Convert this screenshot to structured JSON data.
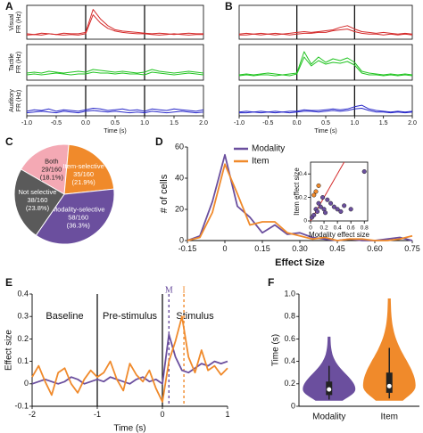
{
  "chart_data": [
    {
      "type": "multi-line",
      "label": "A",
      "xlabel": "Time (s)",
      "xlim": [
        -1,
        2
      ],
      "xticks": [
        {
          "value": -1,
          "label": "-1.0"
        },
        {
          "value": -0.5,
          "label": "-0.5"
        },
        {
          "value": 0,
          "label": "0.0"
        },
        {
          "value": 0.5,
          "label": "0.5"
        },
        {
          "value": 1,
          "label": "1.0"
        },
        {
          "value": 1.5,
          "label": "1.5"
        },
        {
          "value": 2,
          "label": "2.0"
        }
      ],
      "vlines": [
        0,
        1
      ],
      "x": [
        -1,
        -0.875,
        -0.75,
        -0.625,
        -0.5,
        -0.375,
        -0.25,
        -0.125,
        0,
        0.125,
        0.25,
        0.375,
        0.5,
        0.625,
        0.75,
        0.875,
        1,
        1.125,
        1.25,
        1.375,
        1.5,
        1.625,
        1.75,
        1.875,
        2
      ],
      "rows": [
        {
          "ylabel": [
            "Visual",
            "FR (Hz)"
          ],
          "ylim": [
            0,
            50
          ],
          "series": [
            {
              "color": "#d42a2a",
              "values": [
                8,
                7,
                9,
                8,
                7,
                9,
                8,
                8,
                10,
                44,
                30,
                20,
                14,
                12,
                11,
                10,
                9,
                8,
                9,
                8,
                7,
                8,
                9,
                8,
                8
              ]
            },
            {
              "color": "#d42a2a",
              "values": [
                6,
                7,
                6,
                8,
                7,
                6,
                7,
                6,
                8,
                36,
                24,
                16,
                12,
                10,
                9,
                8,
                8,
                7,
                6,
                7,
                8,
                7,
                6,
                7,
                7
              ]
            }
          ]
        },
        {
          "ylabel": [
            "Tactile",
            "FR (Hz)"
          ],
          "ylim": [
            0,
            40
          ],
          "series": [
            {
              "color": "#22c422",
              "values": [
                8,
                9,
                8,
                10,
                9,
                8,
                9,
                10,
                9,
                12,
                11,
                10,
                9,
                10,
                9,
                8,
                9,
                12,
                10,
                9,
                8,
                9,
                10,
                9,
                8
              ]
            },
            {
              "color": "#22c422",
              "values": [
                6,
                7,
                6,
                7,
                8,
                7,
                6,
                7,
                7,
                9,
                8,
                8,
                7,
                8,
                7,
                7,
                6,
                9,
                8,
                7,
                6,
                7,
                8,
                7,
                6
              ]
            }
          ]
        },
        {
          "ylabel": [
            "Auditory",
            "FR (Hz)"
          ],
          "ylim": [
            0,
            40
          ],
          "series": [
            {
              "color": "#2828c8",
              "values": [
                6,
                8,
                7,
                9,
                6,
                8,
                7,
                6,
                8,
                10,
                9,
                7,
                8,
                9,
                7,
                8,
                6,
                9,
                8,
                7,
                9,
                8,
                7,
                6,
                8
              ]
            },
            {
              "color": "#2828c8",
              "values": [
                4,
                5,
                6,
                5,
                4,
                6,
                5,
                4,
                6,
                7,
                6,
                5,
                6,
                5,
                4,
                5,
                4,
                6,
                5,
                4,
                5,
                6,
                5,
                4,
                5
              ]
            }
          ]
        }
      ]
    },
    {
      "type": "multi-line",
      "label": "B",
      "xlabel": "Time (s)",
      "xlim": [
        -1,
        2
      ],
      "xticks": [
        {
          "value": -1,
          "label": "-1.0"
        },
        {
          "value": -0.5,
          "label": "-0.5"
        },
        {
          "value": 0,
          "label": "0.0"
        },
        {
          "value": 0.5,
          "label": "0.5"
        },
        {
          "value": 1,
          "label": "1.0"
        },
        {
          "value": 1.5,
          "label": "1.5"
        },
        {
          "value": 2,
          "label": "2.0"
        }
      ],
      "vlines": [
        0,
        1
      ],
      "x": [
        -1,
        -0.875,
        -0.75,
        -0.625,
        -0.5,
        -0.375,
        -0.25,
        -0.125,
        0,
        0.125,
        0.25,
        0.375,
        0.5,
        0.625,
        0.75,
        0.875,
        1,
        1.125,
        1.25,
        1.375,
        1.5,
        1.625,
        1.75,
        1.875,
        2
      ],
      "rows": [
        {
          "ylabel": [],
          "ylim": [
            0,
            40
          ],
          "series": [
            {
              "color": "#d42a2a",
              "values": [
                6,
                7,
                6,
                7,
                6,
                7,
                6,
                7,
                8,
                9,
                8,
                9,
                10,
                11,
                14,
                16,
                12,
                9,
                8,
                7,
                8,
                7,
                6,
                7,
                6
              ]
            },
            {
              "color": "#d42a2a",
              "values": [
                5,
                5,
                6,
                5,
                6,
                5,
                6,
                5,
                6,
                7,
                7,
                8,
                8,
                10,
                11,
                12,
                9,
                7,
                6,
                6,
                5,
                6,
                5,
                6,
                5
              ]
            }
          ]
        },
        {
          "ylabel": [],
          "ylim": [
            0,
            40
          ],
          "series": [
            {
              "color": "#22c422",
              "values": [
                6,
                7,
                6,
                7,
                8,
                7,
                6,
                7,
                8,
                32,
                18,
                26,
                20,
                24,
                22,
                25,
                20,
                10,
                8,
                7,
                6,
                7,
                6,
                7,
                6
              ]
            },
            {
              "color": "#22c422",
              "values": [
                5,
                6,
                5,
                6,
                6,
                5,
                6,
                5,
                7,
                26,
                16,
                22,
                18,
                20,
                19,
                21,
                17,
                8,
                6,
                6,
                5,
                6,
                5,
                6,
                5
              ]
            }
          ]
        },
        {
          "ylabel": [],
          "ylim": [
            0,
            40
          ],
          "series": [
            {
              "color": "#2828c8",
              "values": [
                5,
                6,
                5,
                6,
                5,
                6,
                5,
                6,
                6,
                8,
                7,
                7,
                8,
                9,
                8,
                9,
                12,
                14,
                9,
                7,
                6,
                5,
                6,
                5,
                6
              ]
            },
            {
              "color": "#2828c8",
              "values": [
                4,
                4,
                5,
                4,
                5,
                4,
                5,
                4,
                5,
                6,
                6,
                5,
                6,
                7,
                6,
                7,
                9,
                10,
                7,
                5,
                5,
                4,
                5,
                4,
                5
              ]
            }
          ]
        }
      ]
    },
    {
      "type": "pie",
      "label": "C",
      "start_angle": -60,
      "categories": [
        "Both",
        "Item-selective",
        "Modality-selective",
        "Not selective"
      ],
      "values": [
        29,
        35,
        58,
        38
      ],
      "value_labels": [
        "29/160",
        "35/160",
        "58/160",
        "38/160"
      ],
      "percent_labels": [
        "(18.1%)",
        "(21.9%)",
        "(36.3%)",
        "(23.8%)"
      ],
      "colors": [
        "#f4a9b4",
        "#f08a2b",
        "#6b4f9e",
        "#5a5a5a"
      ]
    },
    {
      "type": "line",
      "label": "D",
      "xlabel": "Effect Size",
      "ylabel": "# of cells",
      "legend": "upper left",
      "x": [
        -0.15,
        -0.1,
        -0.05,
        0,
        0.05,
        0.1,
        0.15,
        0.2,
        0.25,
        0.3,
        0.35,
        0.4,
        0.45,
        0.5,
        0.55,
        0.6,
        0.65,
        0.7,
        0.75
      ],
      "xlim": [
        -0.15,
        0.75
      ],
      "xticks": [
        -0.15,
        0,
        0.15,
        {
          "value": 0.3,
          "label": "0.30"
        },
        0.45,
        {
          "value": 0.6,
          "label": "0.60"
        },
        0.75
      ],
      "ylim": [
        0,
        60
      ],
      "yticks": [
        0,
        20,
        40,
        60
      ],
      "series": [
        {
          "name": "Modality",
          "color": "#6b4f9e",
          "values": [
            0,
            3,
            25,
            55,
            22,
            15,
            5,
            10,
            4,
            5,
            2,
            1,
            0,
            1,
            0,
            0,
            1,
            2,
            0
          ]
        },
        {
          "name": "Item",
          "color": "#f08a2b",
          "values": [
            0,
            2,
            18,
            49,
            30,
            10,
            12,
            12,
            5,
            3,
            1,
            2,
            0,
            1,
            1,
            0,
            0,
            1,
            3
          ]
        }
      ]
    },
    {
      "type": "scatter",
      "xlabel": "Modality effect size",
      "ylabel": "Item effect size",
      "xlim": [
        0,
        0.85
      ],
      "ylim": [
        0,
        0.5
      ],
      "xticks": [
        0,
        0.2,
        0.4,
        0.6,
        0.8
      ],
      "yticks": [
        0,
        0.2,
        0.4
      ],
      "identity_line_color": "#d42a2a",
      "x": [
        0.02,
        0.05,
        0.08,
        0.1,
        0.12,
        0.15,
        0.18,
        0.2,
        0.22,
        0.25,
        0.3,
        0.35,
        0.4,
        0.45,
        0.5,
        0.6,
        0.8,
        0.08,
        0.12,
        0.05
      ],
      "y": [
        0.03,
        0.05,
        0.1,
        0.08,
        0.15,
        0.12,
        0.2,
        0.1,
        0.07,
        0.18,
        0.15,
        0.12,
        0.1,
        0.08,
        0.13,
        0.1,
        0.42,
        0.25,
        0.3,
        0.22
      ],
      "colors": [
        "#6b4f9e",
        "#6b4f9e",
        "#6b4f9e",
        "#6b4f9e",
        "#6b4f9e",
        "#6b4f9e",
        "#6b4f9e",
        "#6b4f9e",
        "#6b4f9e",
        "#6b4f9e",
        "#6b4f9e",
        "#6b4f9e",
        "#6b4f9e",
        "#6b4f9e",
        "#6b4f9e",
        "#6b4f9e",
        "#6b4f9e",
        "#f08a2b",
        "#f08a2b",
        "#f08a2b"
      ]
    },
    {
      "type": "line",
      "label": "E",
      "xlabel": "Time (s)",
      "ylabel": "Effect size",
      "annotations": [
        "Baseline",
        "Pre-stimulus",
        "Stimulus"
      ],
      "vlines": [
        -1,
        0
      ],
      "markers": [
        {
          "label": "M",
          "x": 0.1,
          "color": "#6b4f9e"
        },
        {
          "label": "I",
          "x": 0.33,
          "color": "#f08a2b"
        }
      ],
      "x": [
        -2,
        -1.9,
        -1.8,
        -1.7,
        -1.6,
        -1.5,
        -1.4,
        -1.3,
        -1.2,
        -1.1,
        -1,
        -0.9,
        -0.8,
        -0.7,
        -0.6,
        -0.5,
        -0.4,
        -0.3,
        -0.2,
        -0.1,
        0,
        0.1,
        0.2,
        0.3,
        0.4,
        0.5,
        0.6,
        0.7,
        0.8,
        0.9,
        1
      ],
      "xlim": [
        -2,
        1
      ],
      "xticks": [
        -2,
        -1,
        0,
        1
      ],
      "ylim": [
        -0.1,
        0.4
      ],
      "yticks": [
        -0.1,
        0,
        0.1,
        0.2,
        0.3,
        0.4
      ],
      "series": [
        {
          "color": "#6b4f9e",
          "values": [
            0.0,
            0.01,
            0.02,
            0.01,
            0.0,
            0.01,
            0.03,
            0.02,
            0.0,
            0.01,
            0.02,
            0.01,
            0.03,
            0.02,
            0.01,
            0.0,
            0.02,
            0.03,
            0.01,
            0.02,
            0.0,
            0.22,
            0.12,
            0.06,
            0.05,
            0.07,
            0.09,
            0.08,
            0.1,
            0.09,
            0.1
          ]
        },
        {
          "color": "#f08a2b",
          "values": [
            0.03,
            0.08,
            0.01,
            -0.05,
            0.05,
            0.07,
            0.0,
            -0.04,
            0.02,
            0.06,
            0.03,
            0.05,
            0.1,
            0.02,
            -0.03,
            0.09,
            0.04,
            0.01,
            0.06,
            -0.02,
            -0.08,
            0.1,
            0.19,
            0.3,
            0.12,
            0.05,
            0.15,
            0.06,
            0.08,
            0.04,
            0.07
          ]
        }
      ]
    },
    {
      "type": "violin",
      "label": "F",
      "ylabel": "Time (s)",
      "categories": [
        "Modality",
        "Item"
      ],
      "colors": [
        "#6b4f9e",
        "#f08a2b"
      ],
      "ylim": [
        0,
        1
      ],
      "yticks": [
        0,
        0.2,
        0.4,
        0.6,
        0.8,
        {
          "value": 1,
          "label": "1.0"
        }
      ],
      "min": [
        0.05,
        0.05
      ],
      "whisker_low": [
        0.06,
        0.07
      ],
      "q1": [
        0.1,
        0.12
      ],
      "median": [
        0.15,
        0.18
      ],
      "q3": [
        0.22,
        0.3
      ],
      "whisker_high": [
        0.36,
        0.52
      ],
      "max": [
        0.62,
        0.96
      ]
    }
  ]
}
